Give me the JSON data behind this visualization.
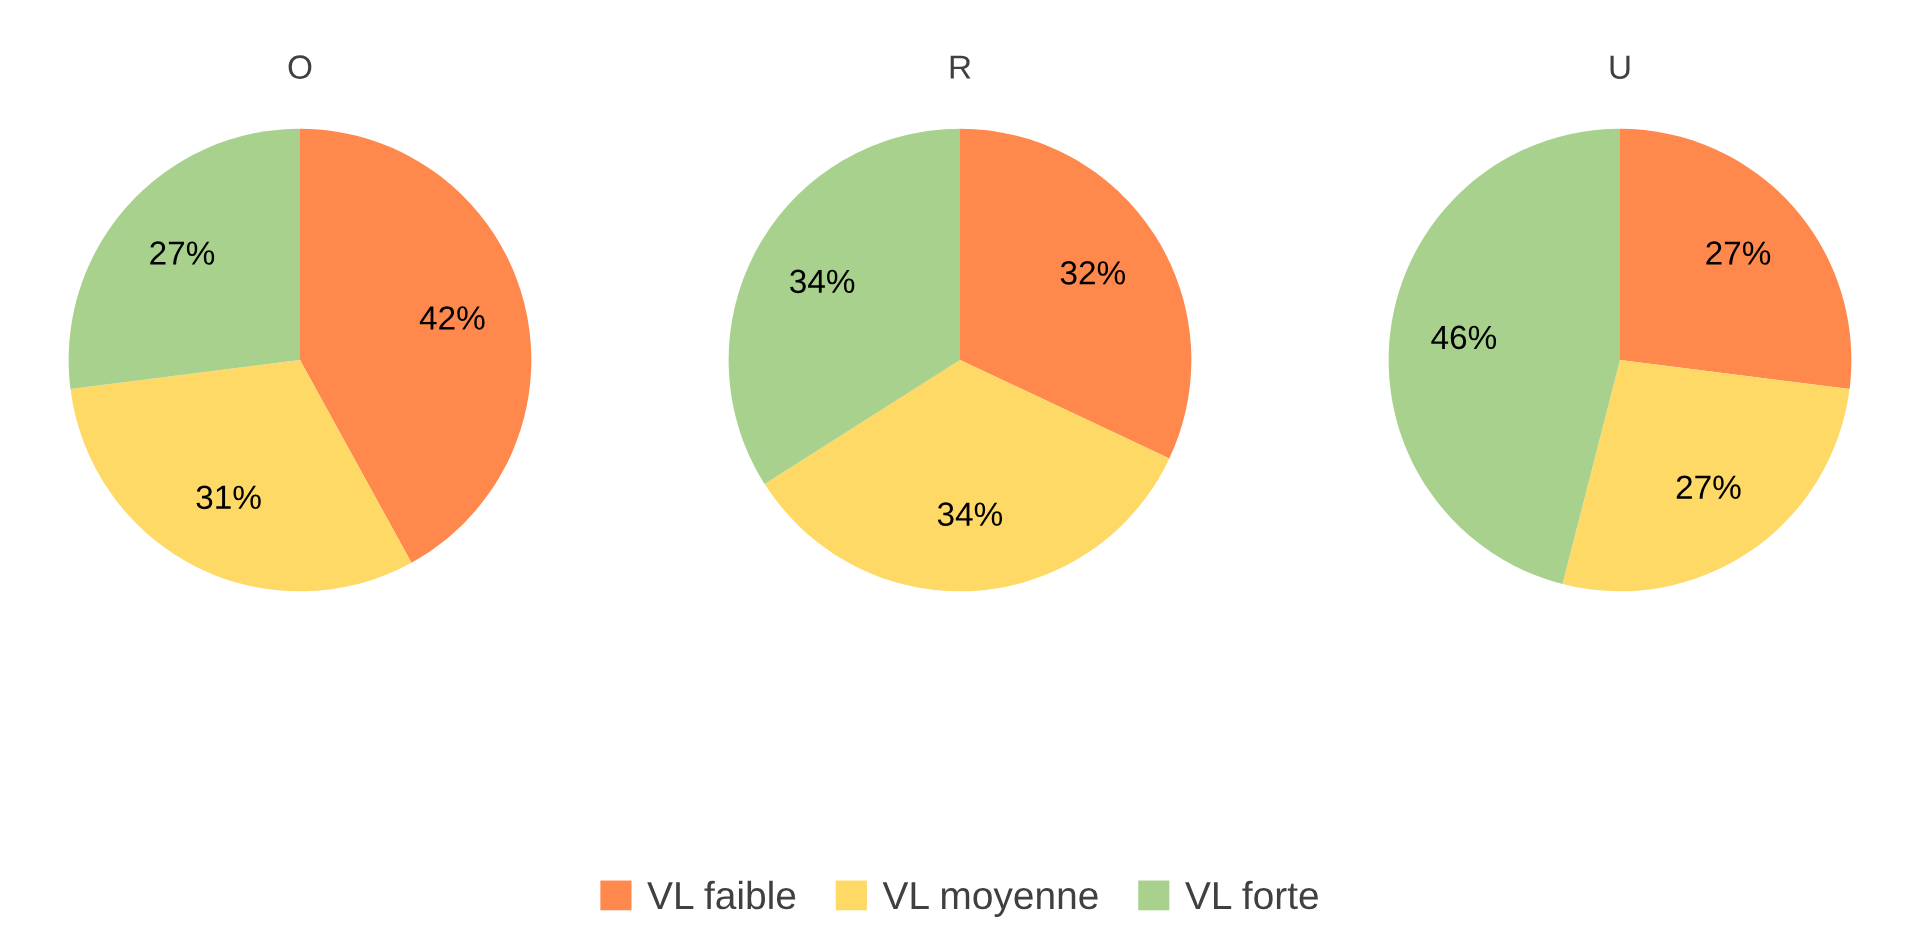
{
  "chart_data": [
    {
      "type": "pie",
      "title": "O",
      "categories": [
        "VL faible",
        "VL moyenne",
        "VL forte"
      ],
      "values": [
        42,
        31,
        27
      ],
      "value_labels": [
        "42%",
        "31%",
        "27%"
      ],
      "colors": [
        "#ff884d",
        "#ffd966",
        "#a9d18e"
      ],
      "legend": "bottom"
    },
    {
      "type": "pie",
      "title": "R",
      "categories": [
        null,
        null,
        null
      ],
      "values": [
        32,
        34,
        34
      ],
      "value_labels": [
        "32%",
        "34%",
        "34%"
      ],
      "colors": [
        "#ff884d",
        "#ffd966",
        "#a9d18e"
      ]
    },
    {
      "type": "pie",
      "title": "U",
      "categories": [
        null,
        null,
        null
      ],
      "values": [
        27,
        27,
        46
      ],
      "value_labels": [
        "27%",
        "27%",
        "46%"
      ],
      "colors": [
        "#ff884d",
        "#ffd966",
        "#a9d18e"
      ]
    }
  ]
}
